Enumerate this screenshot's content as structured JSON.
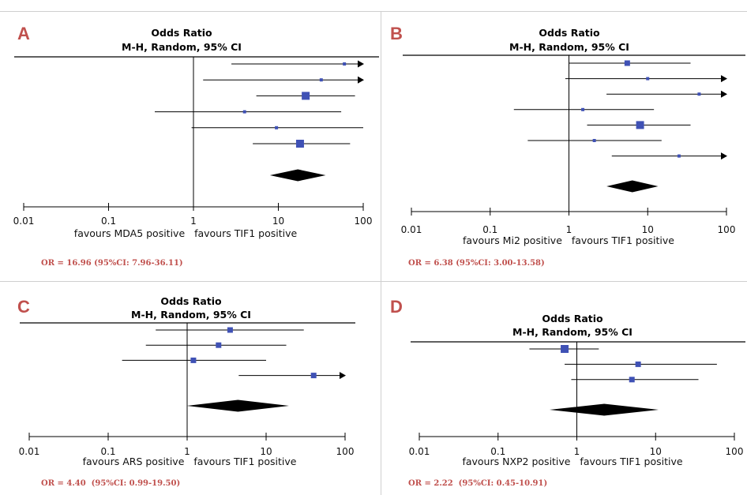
{
  "colors": {
    "marker": "#3f51b5",
    "accent_label": "#c0504d",
    "line": "#000000"
  },
  "chart_data": [
    {
      "type": "forest",
      "panel_label": "A",
      "title": "Odds Ratio",
      "subtitle": "M-H, Random, 95% CI",
      "x_scale": "log",
      "xlim": [
        0.01,
        100
      ],
      "x_ticks": [
        "0.01",
        "0.1",
        "1",
        "10",
        "100"
      ],
      "xlabel_left": "favours MDA5 positive",
      "xlabel_right": "favours TIF1 positive",
      "summary_text": "OR = 16.96 (95%CI: 7.96-36.11)",
      "studies": [
        {
          "or": 60,
          "lower": 2.8,
          "upper": 100,
          "arrow": true,
          "weight": "small"
        },
        {
          "or": 32,
          "lower": 1.3,
          "upper": 100,
          "arrow": true,
          "weight": "small"
        },
        {
          "or": 21,
          "lower": 5.5,
          "upper": 80,
          "arrow": false,
          "weight": "large"
        },
        {
          "or": 4,
          "lower": 0.35,
          "upper": 55,
          "arrow": false,
          "weight": "small"
        },
        {
          "or": 9.5,
          "lower": 0.95,
          "upper": 100,
          "arrow": false,
          "weight": "small"
        },
        {
          "or": 18,
          "lower": 5,
          "upper": 70,
          "arrow": false,
          "weight": "large"
        }
      ],
      "pooled": {
        "or": 16.96,
        "lower": 7.96,
        "upper": 36.11
      }
    },
    {
      "type": "forest",
      "panel_label": "B",
      "title": "Odds Ratio",
      "subtitle": "M-H, Random, 95% CI",
      "x_scale": "log",
      "xlim": [
        0.01,
        100
      ],
      "x_ticks": [
        "0.01",
        "0.1",
        "1",
        "10",
        "100"
      ],
      "xlabel_left": "favours Mi2 positive",
      "xlabel_right": "favours TIF1 positive",
      "summary_text": "OR = 6.38 (95%CI: 3.00-13.58)",
      "studies": [
        {
          "or": 5.5,
          "lower": 1,
          "upper": 35,
          "arrow": false,
          "weight": "medium"
        },
        {
          "or": 10,
          "lower": 0.9,
          "upper": 100,
          "arrow": true,
          "weight": "small"
        },
        {
          "or": 45,
          "lower": 3,
          "upper": 100,
          "arrow": true,
          "weight": "small"
        },
        {
          "or": 1.5,
          "lower": 0.2,
          "upper": 12,
          "arrow": false,
          "weight": "small"
        },
        {
          "or": 8,
          "lower": 1.7,
          "upper": 35,
          "arrow": false,
          "weight": "large"
        },
        {
          "or": 2.1,
          "lower": 0.3,
          "upper": 15,
          "arrow": false,
          "weight": "small"
        },
        {
          "or": 25,
          "lower": 3.5,
          "upper": 100,
          "arrow": true,
          "weight": "small"
        }
      ],
      "pooled": {
        "or": 6.38,
        "lower": 3.0,
        "upper": 13.58
      }
    },
    {
      "type": "forest",
      "panel_label": "C",
      "title": "Odds Ratio",
      "subtitle": "M-H, Random, 95% CI",
      "x_scale": "log",
      "xlim": [
        0.01,
        100
      ],
      "x_ticks": [
        "0.01",
        "0.1",
        "1",
        "10",
        "100"
      ],
      "xlabel_left": "favours ARS positive",
      "xlabel_right": "favours TIF1 positive",
      "summary_text": "OR = 4.40  (95%CI: 0.99-19.50)",
      "studies": [
        {
          "or": 3.5,
          "lower": 0.4,
          "upper": 30,
          "arrow": false,
          "weight": "medium"
        },
        {
          "or": 2.5,
          "lower": 0.3,
          "upper": 18,
          "arrow": false,
          "weight": "medium"
        },
        {
          "or": 1.2,
          "lower": 0.15,
          "upper": 10,
          "arrow": false,
          "weight": "medium"
        },
        {
          "or": 40,
          "lower": 4.5,
          "upper": 100,
          "arrow": true,
          "weight": "medium"
        }
      ],
      "pooled": {
        "or": 4.4,
        "lower": 0.99,
        "upper": 19.5
      }
    },
    {
      "type": "forest",
      "panel_label": "D",
      "title": "Odds Ratio",
      "subtitle": "M-H, Random, 95% CI",
      "x_scale": "log",
      "xlim": [
        0.01,
        100
      ],
      "x_ticks": [
        "0.01",
        "0.1",
        "1",
        "10",
        "100"
      ],
      "xlabel_left": "favours NXP2 positive",
      "xlabel_right": "favours TIF1 positive",
      "summary_text": "OR = 2.22  (95%CI: 0.45-10.91)",
      "studies": [
        {
          "or": 0.7,
          "lower": 0.25,
          "upper": 1.9,
          "arrow": false,
          "weight": "large"
        },
        {
          "or": 6,
          "lower": 0.7,
          "upper": 60,
          "arrow": false,
          "weight": "medium"
        },
        {
          "or": 5,
          "lower": 0.85,
          "upper": 35,
          "arrow": false,
          "weight": "medium"
        }
      ],
      "pooled": {
        "or": 2.22,
        "lower": 0.45,
        "upper": 10.91
      }
    }
  ]
}
